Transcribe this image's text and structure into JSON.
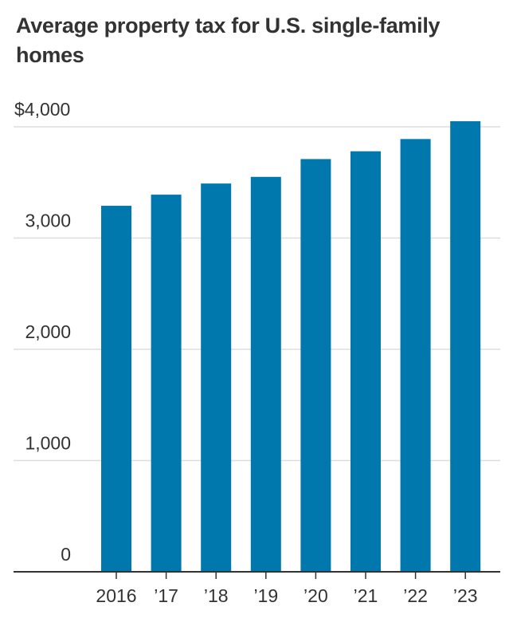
{
  "chart_data": {
    "type": "bar",
    "title": "Average property tax for U.S. single-family homes",
    "categories": [
      "2016",
      "’17",
      "’18",
      "’19",
      "’20",
      "’21",
      "’22",
      "’23"
    ],
    "values": [
      3290,
      3390,
      3490,
      3550,
      3710,
      3780,
      3890,
      4050
    ],
    "ylim": [
      0,
      4000
    ],
    "yticks": [
      0,
      1000,
      2000,
      3000,
      4000
    ],
    "ytick_labels": [
      "0",
      "1,000",
      "2,000",
      "3,000",
      "$4,000"
    ],
    "xlabel": "",
    "ylabel": "",
    "grid": true,
    "bar_color": "#0077ad"
  }
}
